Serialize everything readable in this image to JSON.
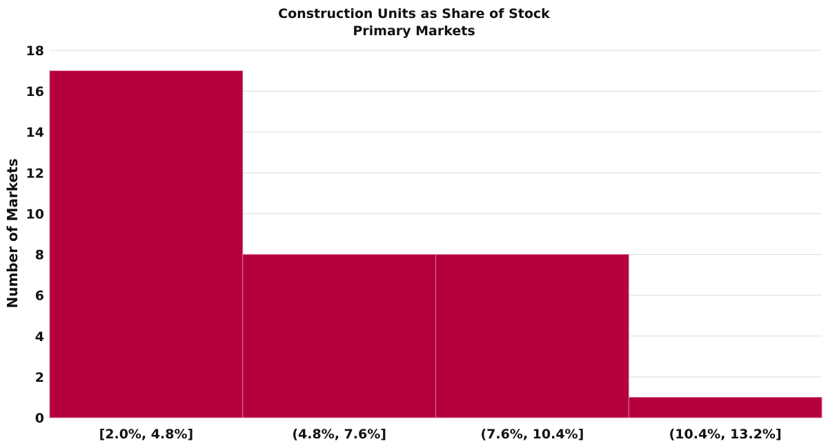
{
  "chart_data": {
    "type": "bar",
    "title": "Construction Units as Share of Stock",
    "subtitle": "Primary Markets",
    "xlabel": "",
    "ylabel": "Number of Markets",
    "categories": [
      "[2.0%, 4.8%]",
      "(4.8%, 7.6%]",
      "(7.6%, 10.4%]",
      "(10.4%, 13.2%]"
    ],
    "values": [
      17,
      8,
      8,
      1
    ],
    "ylim": [
      0,
      18
    ],
    "yticks": [
      0,
      2,
      4,
      6,
      8,
      10,
      12,
      14,
      16,
      18
    ],
    "grid": true,
    "legend": "none",
    "bar_color": "#b5003f",
    "bar_gap": 0
  }
}
